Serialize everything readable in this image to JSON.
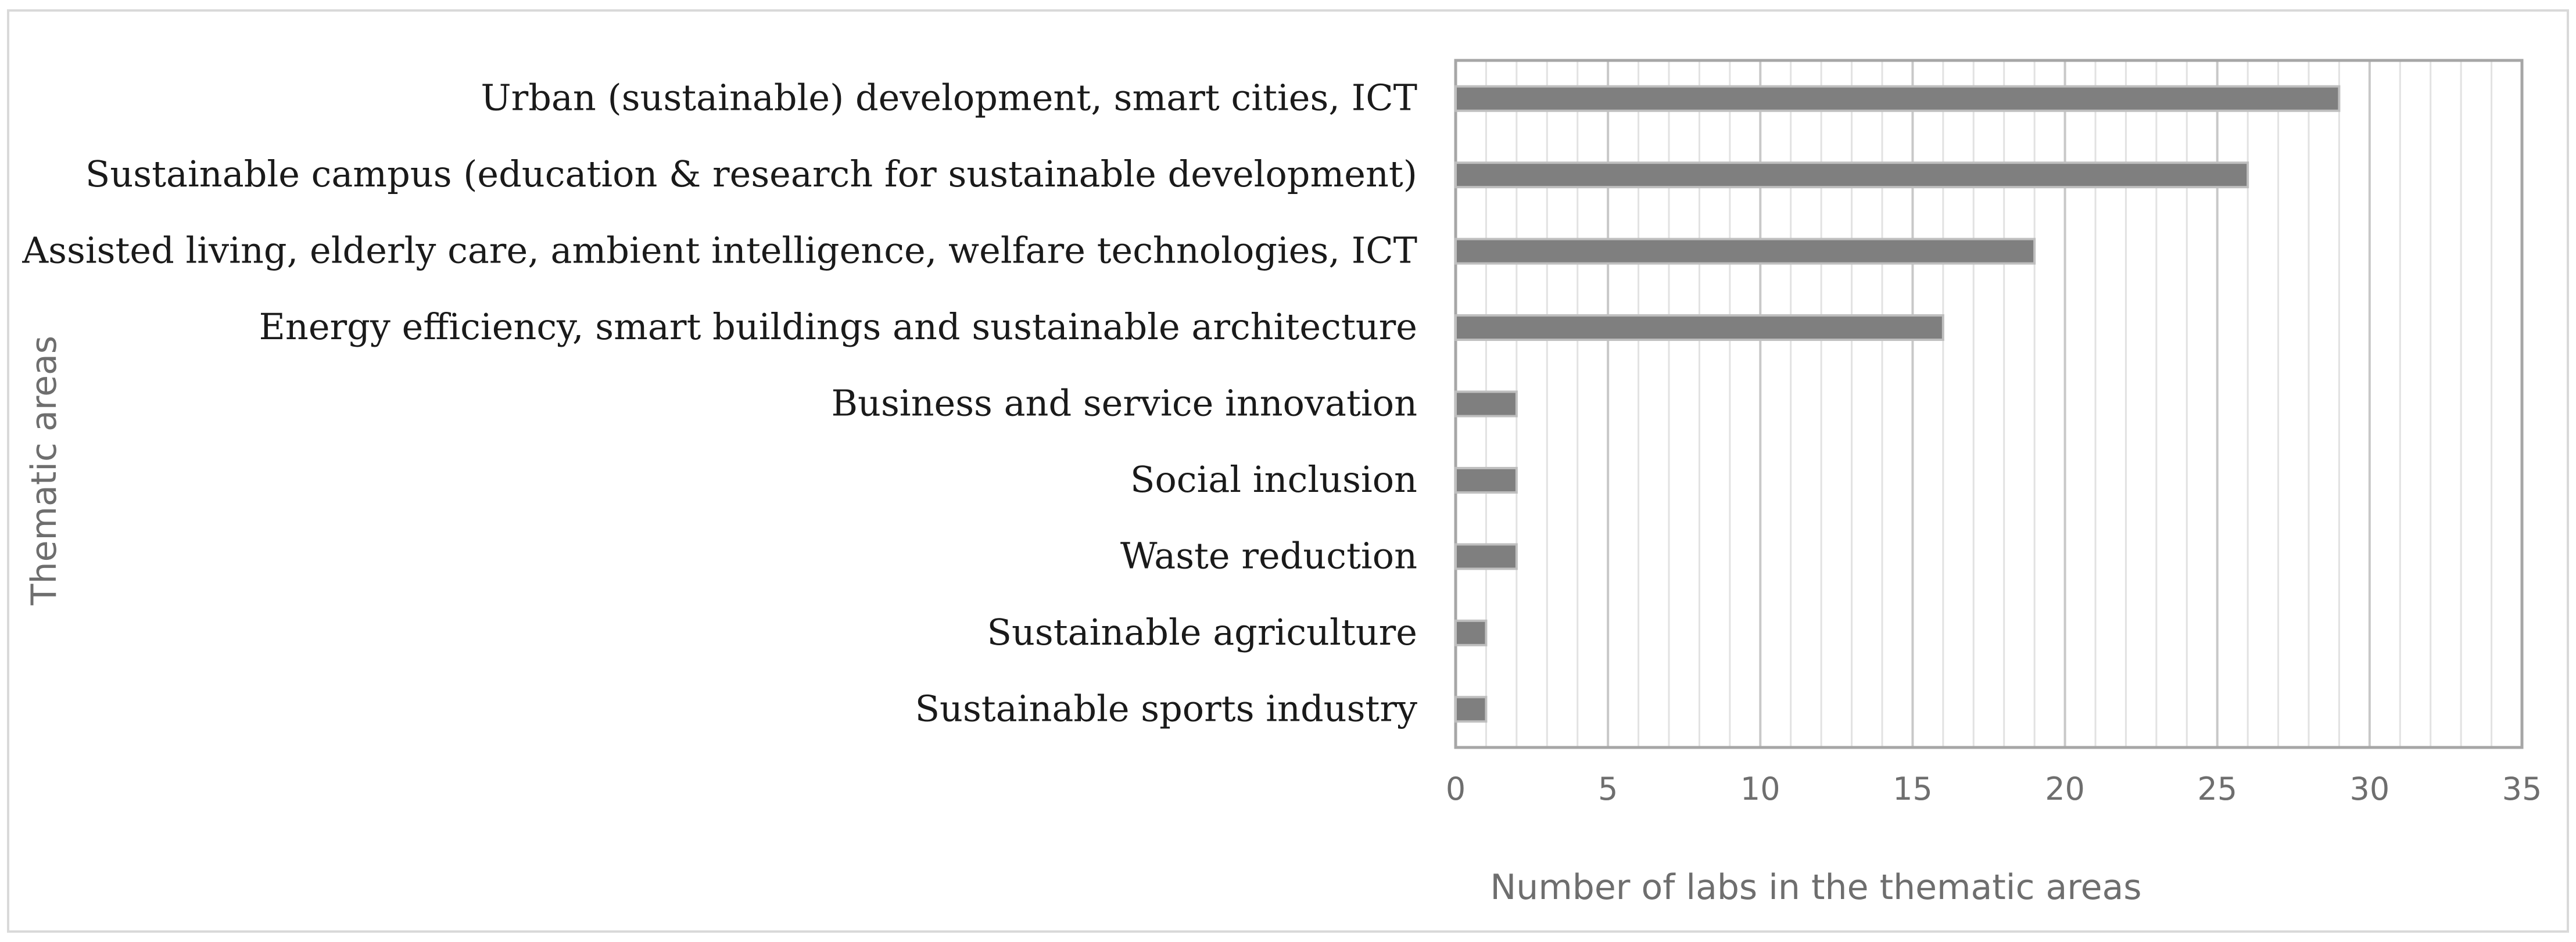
{
  "chart_data": {
    "type": "bar",
    "orientation": "horizontal",
    "title": "",
    "xlabel": "Number of labs in the thematic areas",
    "ylabel": "Thematic areas",
    "categories": [
      "Urban (sustainable) development, smart cities, ICT",
      "Sustainable campus (education & research for sustainable development)",
      "Assisted living, elderly care, ambient intelligence, welfare technologies, ICT",
      "Energy efficiency, smart buildings and sustainable architecture",
      "Business and service innovation",
      "Social inclusion",
      "Waste reduction",
      "Sustainable agriculture",
      "Sustainable sports industry"
    ],
    "values": [
      29,
      26,
      19,
      16,
      2,
      2,
      2,
      1,
      1
    ],
    "xlim": [
      0,
      35
    ],
    "xticks": [
      "0",
      "5",
      "10",
      "15",
      "20",
      "25",
      "30",
      "35"
    ],
    "major_grid_step": 5,
    "minor_grid_step": 1,
    "bar_color": "#7f7f7f",
    "bar_edge_color": "#bfbfbf",
    "legend": "none"
  }
}
